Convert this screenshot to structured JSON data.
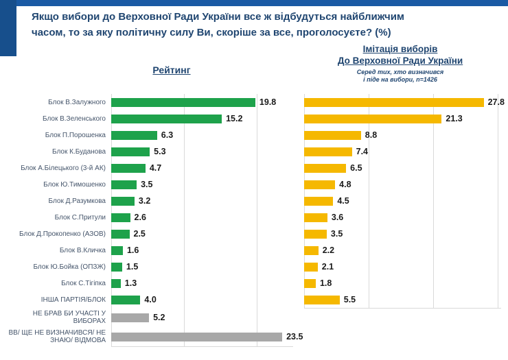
{
  "title": {
    "line1": "Якщо вибори до Верховної Ради України все ж відбудуться найближчим",
    "line2": "часом, то за яку політичну силу Ви, скоріше за все, проголосуєте? (%)"
  },
  "left_chart": {
    "header": "Рейтинг"
  },
  "right_chart": {
    "header_line1": "Імітація виборів",
    "header_line2": "До Верховної Ради України",
    "subtitle_line1": "Серед тих, хто визначився",
    "subtitle_line2": "і піде на вибори, n=1426"
  },
  "colors": {
    "green_bar": "#1EA24B",
    "yellow_bar": "#F5B800",
    "gray_bar": "#A8A8A8",
    "navy_text": "#1F4570",
    "label_text": "#44546A",
    "top_strip": "#1A5AA4",
    "left_block": "#174F8C",
    "gridline": "#D9D9D9"
  },
  "chart_data": {
    "type": "bar",
    "orientation": "horizontal",
    "title": "Якщо вибори до Верховної Ради України все ж відбудуться найближчим часом, то за яку політичну силу Ви, скоріше за все, проголосуєте? (%)",
    "categories": [
      "Блок В.Залужного",
      "Блок В.Зеленського",
      "Блок П.Порошенка",
      "Блок К.Буданова",
      "Блок А.Білецького (3-й АК)",
      "Блок Ю.Тимошенко",
      "Блок Д.Разумкова",
      "Блок С.Притули",
      "Блок Д.Прокопенко (АЗОВ)",
      "Блок В.Кличка",
      "Блок Ю.Бойка (ОПЗЖ)",
      "Блок С.Тігіпка",
      "ІНША ПАРТІЯ/БЛОК",
      "НЕ БРАВ БИ УЧАСТІ У ВИБОРАХ",
      "ВВ/ ЩЕ НЕ ВИЗНАЧИВСЯ/ НЕ ЗНАЮ/ ВІДМОВА"
    ],
    "series": [
      {
        "name": "Рейтинг",
        "values": [
          19.8,
          15.2,
          6.3,
          5.3,
          4.7,
          3.5,
          3.2,
          2.6,
          2.5,
          1.6,
          1.5,
          1.3,
          4.0,
          5.2,
          23.5
        ],
        "bar_colors": [
          "#1EA24B",
          "#1EA24B",
          "#1EA24B",
          "#1EA24B",
          "#1EA24B",
          "#1EA24B",
          "#1EA24B",
          "#1EA24B",
          "#1EA24B",
          "#1EA24B",
          "#1EA24B",
          "#1EA24B",
          "#1EA24B",
          "#A8A8A8",
          "#A8A8A8"
        ]
      },
      {
        "name": "Імітація виборів До Верховної Ради України (Серед тих, хто визначився і піде на вибори, n=1426)",
        "values": [
          27.8,
          21.3,
          8.8,
          7.4,
          6.5,
          4.8,
          4.5,
          3.6,
          3.5,
          2.2,
          2.1,
          1.8,
          5.5,
          null,
          null
        ],
        "bar_colors": [
          "#F5B800",
          "#F5B800",
          "#F5B800",
          "#F5B800",
          "#F5B800",
          "#F5B800",
          "#F5B800",
          "#F5B800",
          "#F5B800",
          "#F5B800",
          "#F5B800",
          "#F5B800",
          "#F5B800",
          null,
          null
        ]
      }
    ],
    "xlim_left": [
      0,
      25
    ],
    "xlim_right": [
      0,
      30.5
    ],
    "gridline_step": 10,
    "grid": true,
    "legend_position": "none",
    "value_labels": "one-decimal, bold, right of bar"
  }
}
